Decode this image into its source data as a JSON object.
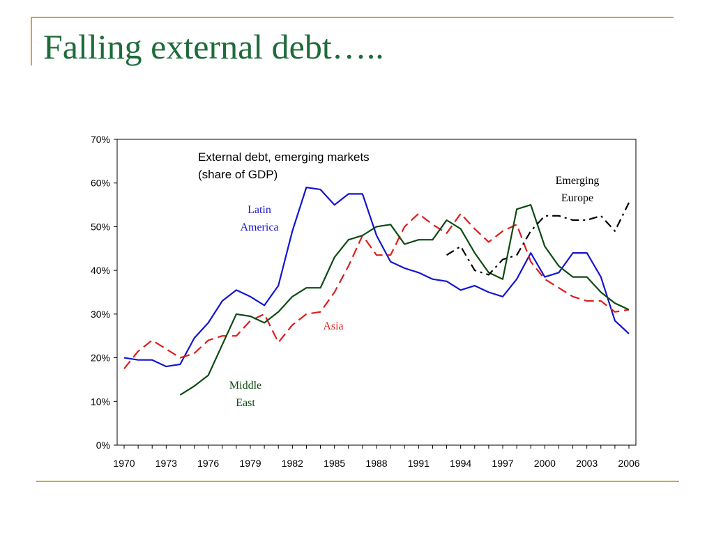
{
  "slide": {
    "title": "Falling external debt…..",
    "accent_color": "#d8a23a",
    "title_color": "#1e6b3a"
  },
  "chart_data": {
    "type": "line",
    "title_lines": [
      "External debt, emerging markets",
      "(share of GDP)"
    ],
    "xlabel": "",
    "ylabel": "",
    "xlim": [
      1970,
      2006
    ],
    "ylim": [
      0,
      70
    ],
    "x_ticks": [
      "1970",
      "1973",
      "1976",
      "1979",
      "1982",
      "1985",
      "1988",
      "1991",
      "1994",
      "1997",
      "2000",
      "2003",
      "2006"
    ],
    "y_ticks": [
      "0%",
      "10%",
      "20%",
      "30%",
      "40%",
      "50%",
      "60%",
      "70%"
    ],
    "grid": false,
    "series": [
      {
        "name": "Latin America",
        "label_lines": [
          "Latin",
          "America"
        ],
        "color": "#1414d2",
        "style": "solid",
        "x": [
          1970,
          1971,
          1972,
          1973,
          1974,
          1975,
          1976,
          1977,
          1978,
          1979,
          1980,
          1981,
          1982,
          1983,
          1984,
          1985,
          1986,
          1987,
          1988,
          1989,
          1990,
          1991,
          1992,
          1993,
          1994,
          1995,
          1996,
          1997,
          1998,
          1999,
          2000,
          2001,
          2002,
          2003,
          2004,
          2005,
          2006
        ],
        "values": [
          20,
          19.5,
          19.5,
          18,
          18.5,
          24.5,
          28,
          33,
          35.5,
          34,
          32,
          36.5,
          49,
          59,
          58.5,
          55,
          57.5,
          57.5,
          48,
          42,
          40.5,
          39.5,
          38,
          37.5,
          35.5,
          36.5,
          35,
          34,
          38,
          44,
          38.5,
          39.5,
          44,
          44,
          38.5,
          28.5,
          25.5
        ]
      },
      {
        "name": "Asia",
        "label_lines": [
          "Asia"
        ],
        "color": "#e01c1c",
        "style": "dashed",
        "x": [
          1970,
          1971,
          1972,
          1973,
          1974,
          1975,
          1976,
          1977,
          1978,
          1979,
          1980,
          1981,
          1982,
          1983,
          1984,
          1985,
          1986,
          1987,
          1988,
          1989,
          1990,
          1991,
          1992,
          1993,
          1994,
          1995,
          1996,
          1997,
          1998,
          1999,
          2000,
          2001,
          2002,
          2003,
          2004,
          2005,
          2006
        ],
        "values": [
          17.5,
          21.5,
          24,
          22,
          20,
          21,
          24,
          25,
          25,
          28.5,
          30,
          23.5,
          27.5,
          30,
          30.5,
          35,
          41,
          48,
          43.5,
          43.5,
          50,
          53,
          50.5,
          48.5,
          53,
          49.5,
          46.5,
          49,
          50.5,
          42,
          38,
          36,
          34,
          33,
          33,
          30.5,
          31
        ]
      },
      {
        "name": "Middle East",
        "label_lines": [
          "Middle",
          "East"
        ],
        "color": "#0c4a12",
        "style": "solid",
        "x": [
          1974,
          1975,
          1976,
          1977,
          1978,
          1979,
          1980,
          1981,
          1982,
          1983,
          1984,
          1985,
          1986,
          1987,
          1988,
          1989,
          1990,
          1991,
          1992,
          1993,
          1994,
          1995,
          1996,
          1997,
          1998,
          1999,
          2000,
          2001,
          2002,
          2003,
          2004,
          2005,
          2006
        ],
        "values": [
          11.5,
          13.5,
          16,
          23,
          30,
          29.5,
          28,
          30.5,
          34,
          36,
          36,
          43,
          47,
          48,
          50,
          50.5,
          46,
          47,
          47,
          51.5,
          49.5,
          44,
          39.5,
          38,
          54,
          55,
          45.5,
          41,
          38.5,
          38.5,
          35,
          32.5,
          31
        ]
      },
      {
        "name": "Emerging Europe",
        "label_lines": [
          "Emerging",
          "Europe"
        ],
        "color": "#000000",
        "style": "dashdot",
        "x": [
          1993,
          1994,
          1995,
          1996,
          1997,
          1998,
          1999,
          2000,
          2001,
          2002,
          2003,
          2004,
          2005,
          2006
        ],
        "values": [
          43.5,
          45.5,
          40,
          39,
          42.5,
          43.5,
          49,
          52.5,
          52.5,
          51.5,
          51.5,
          52.5,
          49,
          55.5
        ]
      }
    ]
  }
}
